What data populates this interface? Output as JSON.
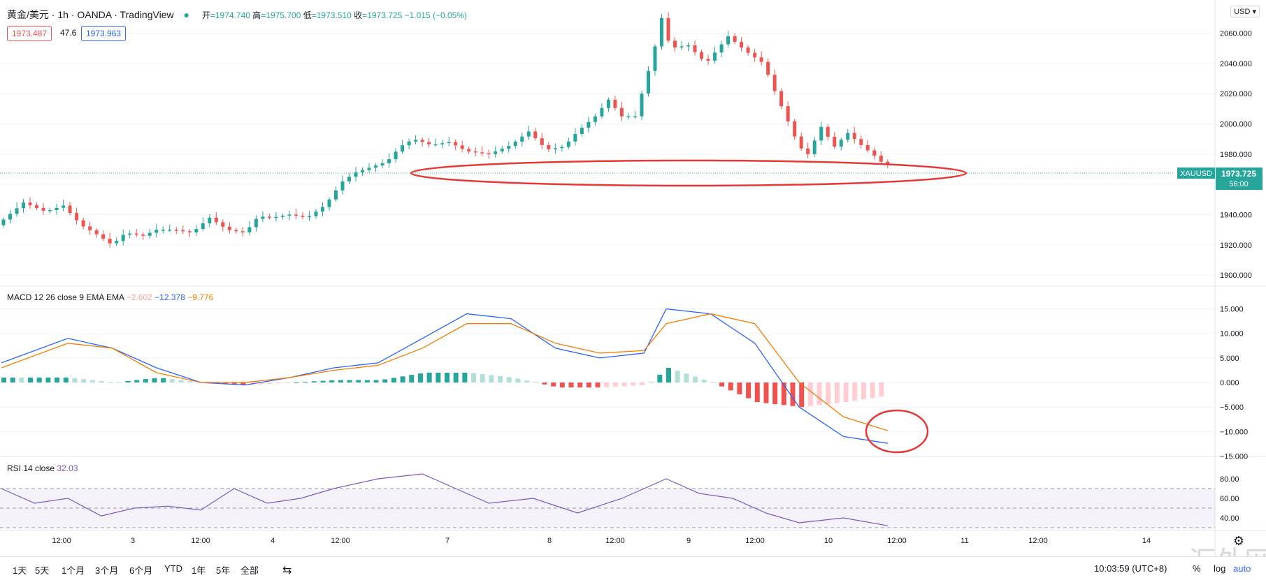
{
  "header": {
    "symbol": "黄金/美元 · 1h · OANDA · TradingView",
    "open_label": "开",
    "open": "1974.740",
    "high_label": "高",
    "high": "1975.700",
    "low_label": "低",
    "low": "1973.510",
    "close_label": "收",
    "close": "1973.725",
    "change": "−1.015 (−0.05%)",
    "bid": "1973.487",
    "spread": "47.6",
    "ask": "1973.963"
  },
  "currency": "USD",
  "last_price_tag": {
    "symbol": "XAUUSD",
    "price": "1973.725",
    "countdown": "56:00"
  },
  "colors": {
    "up": "#26a69a",
    "down": "#ef5350",
    "macd": "#2962ff",
    "signal": "#f57c00",
    "rsi": "#7e57c2",
    "annotation": "#e53935"
  },
  "macd_label": {
    "name": "MACD 12 26 close 9 EMA EMA",
    "hist": "−2.602",
    "macd": "−12.378",
    "signal": "−9.776"
  },
  "rsi_label": {
    "name": "RSI 14 close",
    "value": "32.03"
  },
  "chart_data": [
    {
      "type": "candlestick",
      "title": "黄金/美元 · 1h · OANDA",
      "ylim": [
        1895,
        2075
      ],
      "ticks": [
        "1900.000",
        "1920.000",
        "1940.000",
        "1960.000",
        "1980.000",
        "2000.000",
        "2020.000",
        "2040.000",
        "2060.000"
      ],
      "x_labels": [
        "12:00",
        "3",
        "12:00",
        "4",
        "12:00",
        "7",
        "8",
        "12:00",
        "9",
        "12:00",
        "10",
        "12:00",
        "11",
        "12:00",
        "14"
      ],
      "close_path": [
        [
          0,
          1933
        ],
        [
          12,
          1948
        ],
        [
          22,
          1942
        ],
        [
          30,
          1946
        ],
        [
          38,
          1933
        ],
        [
          44,
          1928
        ],
        [
          52,
          1920
        ],
        [
          58,
          1928
        ],
        [
          66,
          1926
        ],
        [
          72,
          1930
        ],
        [
          80,
          1930
        ],
        [
          88,
          1928
        ],
        [
          96,
          1938
        ],
        [
          104,
          1930
        ],
        [
          112,
          1928
        ],
        [
          118,
          1939
        ],
        [
          124,
          1938
        ],
        [
          132,
          1940
        ],
        [
          140,
          1938
        ],
        [
          148,
          1946
        ],
        [
          156,
          1962
        ],
        [
          162,
          1968
        ],
        [
          170,
          1972
        ],
        [
          176,
          1975
        ],
        [
          182,
          1985
        ],
        [
          188,
          1990
        ],
        [
          196,
          1986
        ],
        [
          204,
          1988
        ],
        [
          212,
          1982
        ],
        [
          222,
          1980
        ],
        [
          232,
          1986
        ],
        [
          240,
          1995
        ],
        [
          248,
          1983
        ],
        [
          256,
          1985
        ],
        [
          262,
          1995
        ],
        [
          270,
          2005
        ],
        [
          276,
          2016
        ],
        [
          282,
          2005
        ],
        [
          288,
          2005
        ],
        [
          296,
          2045
        ],
        [
          300,
          2070
        ],
        [
          304,
          2050
        ],
        [
          312,
          2052
        ],
        [
          320,
          2040
        ],
        [
          330,
          2058
        ],
        [
          338,
          2048
        ],
        [
          346,
          2040
        ],
        [
          350,
          2025
        ],
        [
          356,
          2005
        ],
        [
          362,
          1985
        ],
        [
          366,
          1980
        ],
        [
          372,
          1998
        ],
        [
          378,
          1985
        ],
        [
          384,
          1994
        ],
        [
          390,
          1986
        ],
        [
          396,
          1979
        ],
        [
          400,
          1973.7
        ]
      ]
    },
    {
      "type": "bar",
      "title": "MACD 12 26 close 9 EMA EMA",
      "ylim": [
        -14.5,
        17.5
      ],
      "ticks": [
        "15.000",
        "10.000",
        "5.000",
        "0.000",
        "−5.000",
        "−10.000",
        "−15.000"
      ],
      "macd_path": [
        [
          0,
          4
        ],
        [
          30,
          9
        ],
        [
          50,
          7
        ],
        [
          70,
          3
        ],
        [
          90,
          0
        ],
        [
          110,
          -0.5
        ],
        [
          130,
          1
        ],
        [
          150,
          3
        ],
        [
          170,
          4
        ],
        [
          190,
          9
        ],
        [
          210,
          14
        ],
        [
          230,
          13
        ],
        [
          250,
          7
        ],
        [
          270,
          5
        ],
        [
          290,
          6
        ],
        [
          300,
          15
        ],
        [
          320,
          14
        ],
        [
          340,
          8
        ],
        [
          360,
          -5
        ],
        [
          380,
          -11
        ],
        [
          400,
          -12.4
        ]
      ],
      "signal_path": [
        [
          0,
          3
        ],
        [
          30,
          8
        ],
        [
          50,
          7
        ],
        [
          70,
          2
        ],
        [
          90,
          0
        ],
        [
          110,
          0
        ],
        [
          130,
          1
        ],
        [
          150,
          2.5
        ],
        [
          170,
          3.5
        ],
        [
          190,
          7
        ],
        [
          210,
          12
        ],
        [
          230,
          12
        ],
        [
          250,
          8
        ],
        [
          270,
          6
        ],
        [
          290,
          6.5
        ],
        [
          300,
          12
        ],
        [
          320,
          14
        ],
        [
          340,
          12
        ],
        [
          360,
          0
        ],
        [
          380,
          -7
        ],
        [
          400,
          -9.8
        ]
      ]
    },
    {
      "type": "line",
      "title": "RSI 14 close",
      "ylim": [
        30,
        90
      ],
      "ticks": [
        "80.00",
        "60.00",
        "40.00"
      ],
      "bands": [
        70,
        50,
        30
      ],
      "rsi_path": [
        [
          0,
          70
        ],
        [
          15,
          55
        ],
        [
          30,
          60
        ],
        [
          45,
          42
        ],
        [
          60,
          50
        ],
        [
          75,
          52
        ],
        [
          90,
          48
        ],
        [
          105,
          70
        ],
        [
          120,
          55
        ],
        [
          135,
          60
        ],
        [
          150,
          70
        ],
        [
          170,
          80
        ],
        [
          190,
          85
        ],
        [
          205,
          70
        ],
        [
          220,
          55
        ],
        [
          240,
          60
        ],
        [
          260,
          45
        ],
        [
          280,
          60
        ],
        [
          300,
          80
        ],
        [
          315,
          65
        ],
        [
          330,
          60
        ],
        [
          345,
          45
        ],
        [
          360,
          35
        ],
        [
          380,
          40
        ],
        [
          400,
          32
        ]
      ]
    }
  ],
  "toolbar": {
    "timeframes": [
      "1天",
      "5天",
      "1个月",
      "3个月",
      "6个月",
      "YTD",
      "1年",
      "5年",
      "全部"
    ],
    "time": "10:03:59 (UTC+8)",
    "pct": "%",
    "log": "log",
    "auto": "auto"
  },
  "watermark": "汇外网"
}
